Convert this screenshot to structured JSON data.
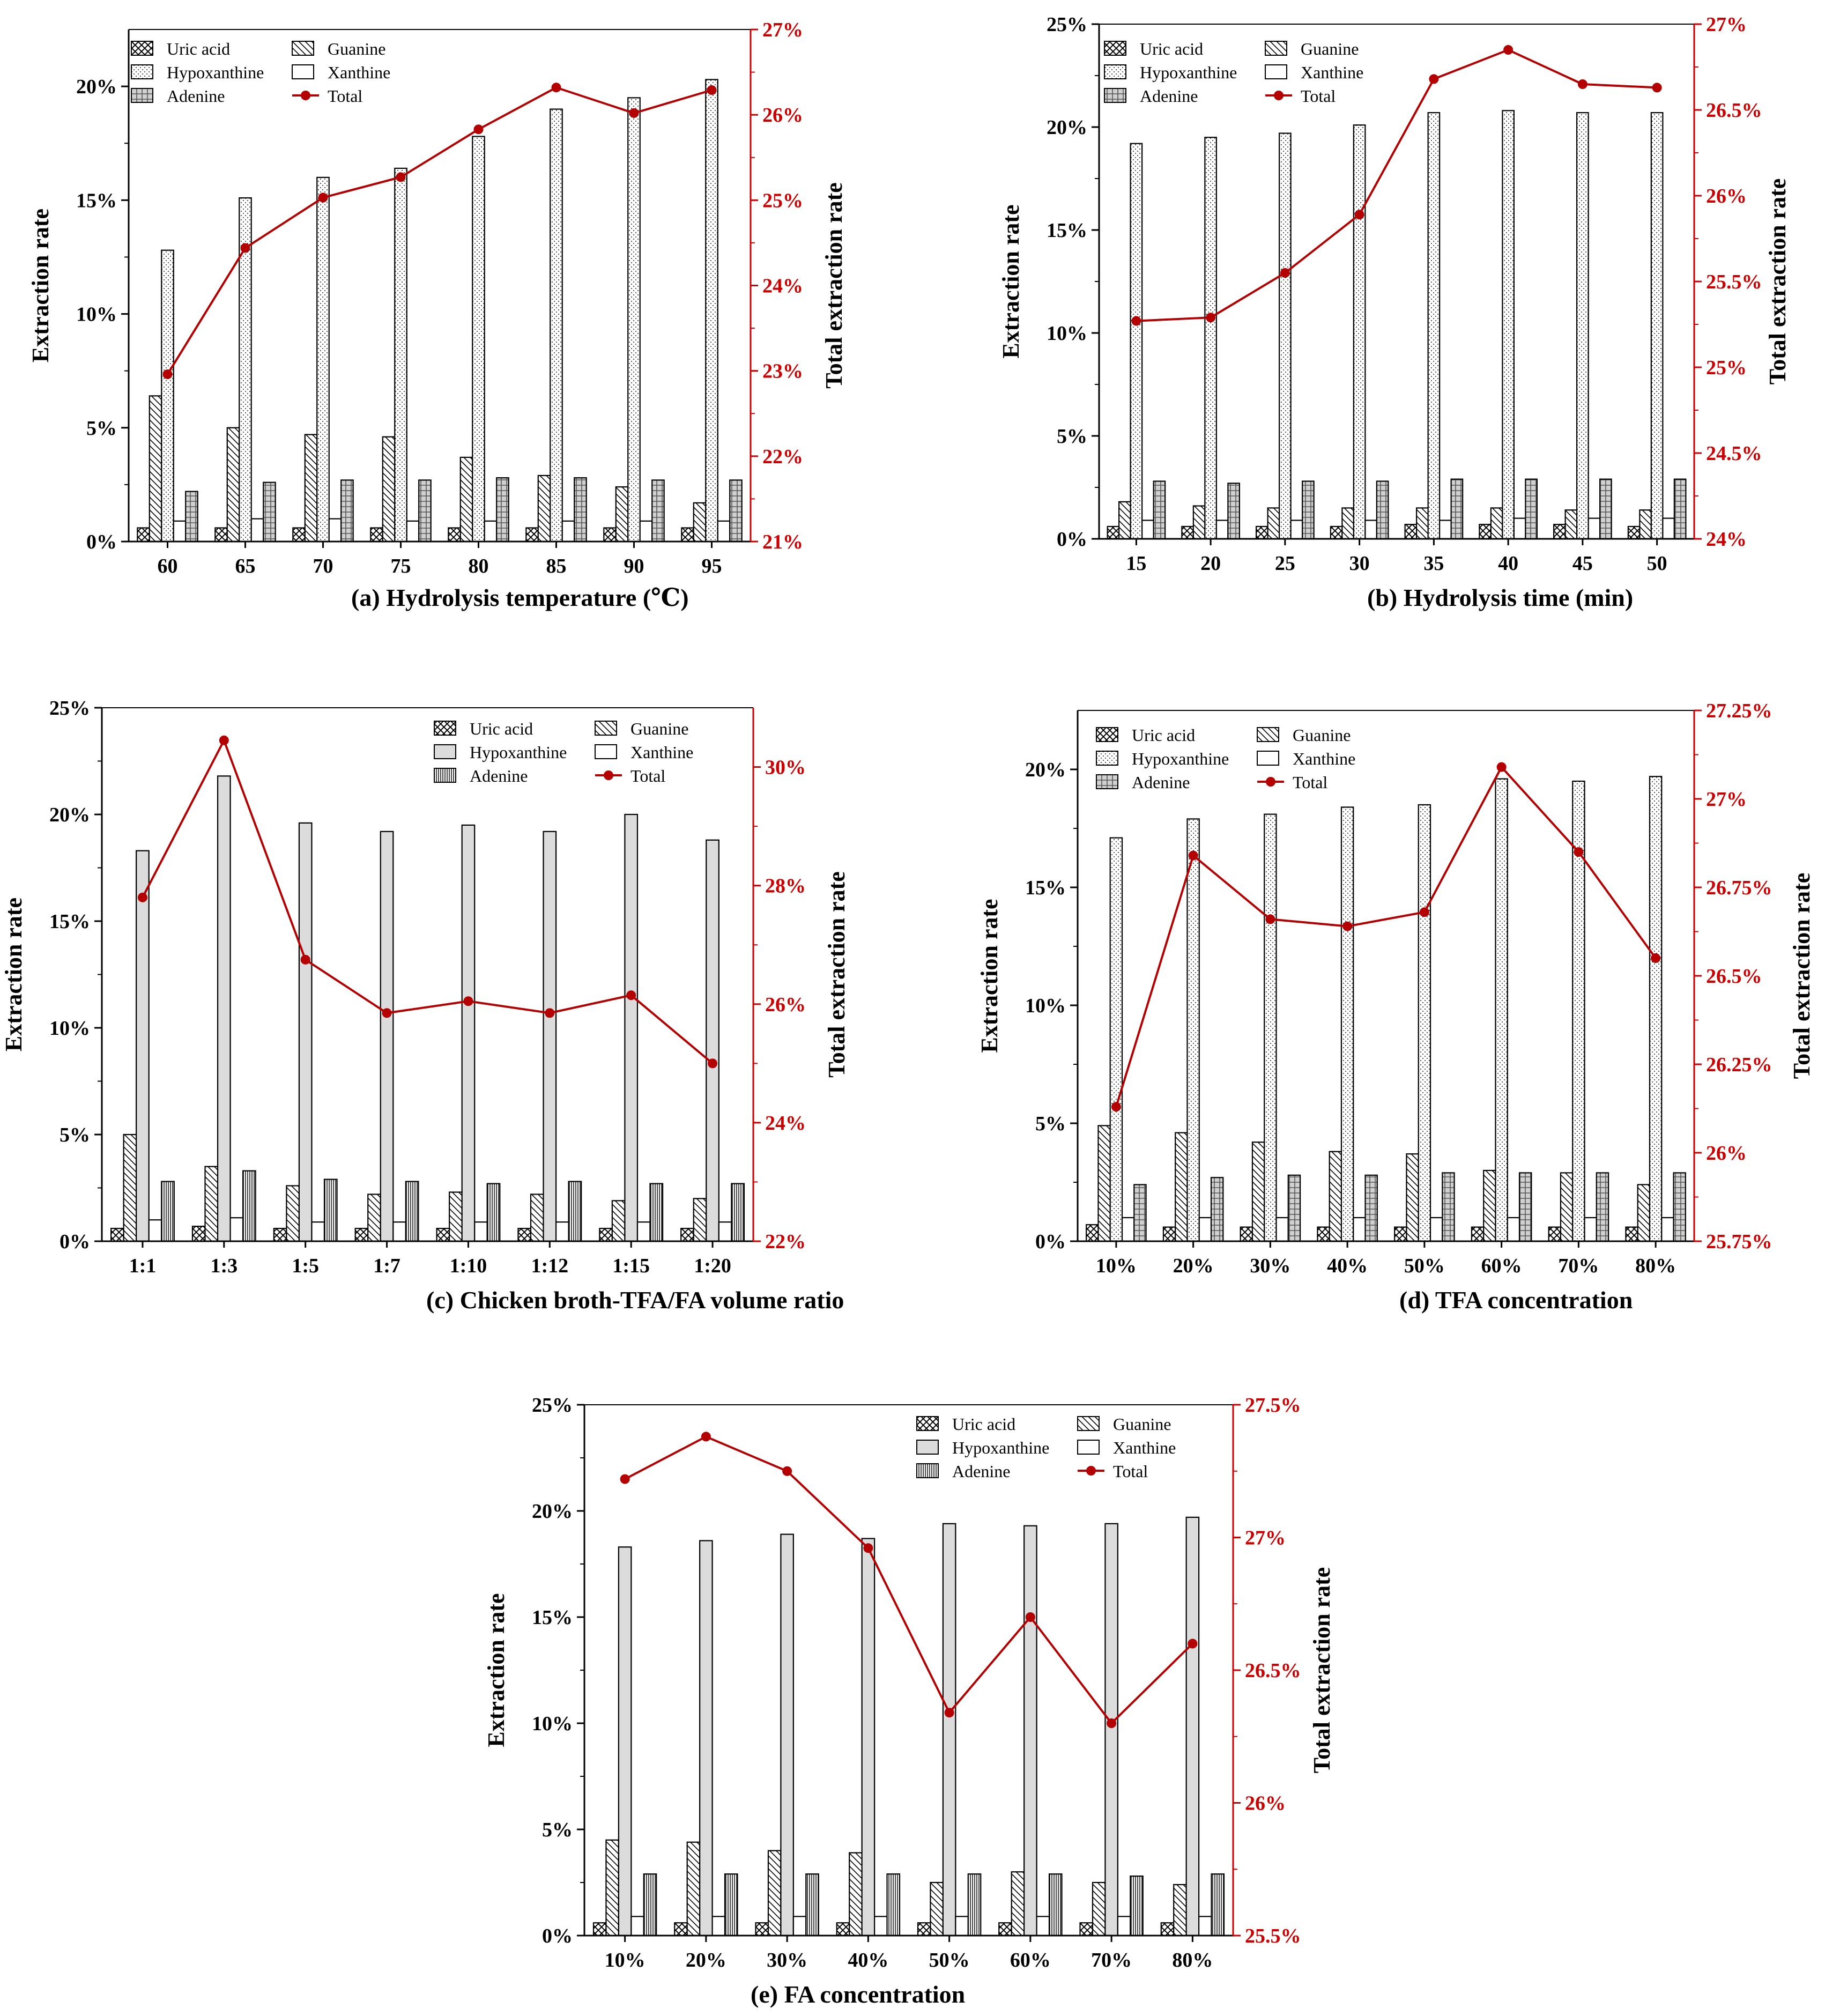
{
  "figure": {
    "series_colors": {
      "bar_stroke": "#000000",
      "hypoxanthine_fill": "#dcdcdc",
      "total_line": "#b40000",
      "right_axis": "#cc0000"
    },
    "series_names": [
      "Uric acid",
      "Guanine",
      "Hypoxanthine",
      "Xanthine",
      "Adenine",
      "Total"
    ]
  },
  "chart_data": [
    {
      "id": "a",
      "type": "bar+line",
      "caption_letter": "(a)",
      "title": "Hydrolysis temperature (℃)",
      "ylabel": "Extraction rate",
      "y2label": "Total extraction rate",
      "categories": [
        "60",
        "65",
        "70",
        "75",
        "80",
        "85",
        "90",
        "95"
      ],
      "ylim": [
        0,
        22.5
      ],
      "yticks": [
        0,
        5,
        10,
        15,
        20
      ],
      "ytick_labels": [
        "0%",
        "5%",
        "10%",
        "15%",
        "20%"
      ],
      "y2lim": [
        21,
        27
      ],
      "y2ticks": [
        21,
        22,
        23,
        24,
        25,
        26,
        27
      ],
      "y2tick_labels": [
        "21%",
        "22%",
        "23%",
        "24%",
        "25%",
        "26%",
        "27%"
      ],
      "legend": [
        "Uric acid",
        "Guanine",
        "Hypoxanthine",
        "Xanthine",
        "Adenine",
        "Total"
      ],
      "legend_position": "top-left",
      "series": [
        {
          "name": "Uric acid",
          "values": [
            0.6,
            0.6,
            0.6,
            0.6,
            0.6,
            0.6,
            0.6,
            0.6
          ]
        },
        {
          "name": "Guanine",
          "values": [
            6.4,
            5.0,
            4.7,
            4.6,
            3.7,
            2.9,
            2.4,
            1.7
          ]
        },
        {
          "name": "Hypoxanthine",
          "values": [
            12.8,
            15.1,
            16.0,
            16.4,
            17.8,
            19.0,
            19.5,
            20.3
          ]
        },
        {
          "name": "Xanthine",
          "values": [
            0.9,
            1.0,
            1.0,
            0.9,
            0.9,
            0.9,
            0.9,
            0.9
          ]
        },
        {
          "name": "Adenine",
          "values": [
            2.2,
            2.6,
            2.7,
            2.7,
            2.8,
            2.8,
            2.7,
            2.7
          ]
        }
      ],
      "total": [
        22.96,
        24.44,
        25.03,
        25.27,
        25.83,
        26.32,
        26.02,
        26.29
      ]
    },
    {
      "id": "b",
      "type": "bar+line",
      "caption_letter": "(b)",
      "title": "Hydrolysis time (min)",
      "ylabel": "Extraction rate",
      "y2label": "Total extraction rate",
      "categories": [
        "15",
        "20",
        "25",
        "30",
        "35",
        "40",
        "45",
        "50"
      ],
      "ylim": [
        0,
        25
      ],
      "yticks": [
        0,
        5,
        10,
        15,
        20,
        25
      ],
      "ytick_labels": [
        "0%",
        "5%",
        "10%",
        "15%",
        "20%",
        "25%"
      ],
      "y2lim": [
        24,
        27
      ],
      "y2ticks": [
        24,
        24.5,
        25,
        25.5,
        26,
        26.5,
        27
      ],
      "y2tick_labels": [
        "24%",
        "24.5%",
        "25%",
        "25.5%",
        "26%",
        "26.5%",
        "27%"
      ],
      "legend": [
        "Uric acid",
        "Guanine",
        "Hypoxanthine",
        "Xanthine",
        "Adenine",
        "Total"
      ],
      "legend_position": "top-left",
      "series": [
        {
          "name": "Uric acid",
          "values": [
            0.6,
            0.6,
            0.6,
            0.6,
            0.7,
            0.7,
            0.7,
            0.6
          ]
        },
        {
          "name": "Guanine",
          "values": [
            1.8,
            1.6,
            1.5,
            1.5,
            1.5,
            1.5,
            1.4,
            1.4
          ]
        },
        {
          "name": "Hypoxanthine",
          "values": [
            19.2,
            19.5,
            19.7,
            20.1,
            20.7,
            20.8,
            20.7,
            20.7
          ]
        },
        {
          "name": "Xanthine",
          "values": [
            0.9,
            0.9,
            0.9,
            0.9,
            0.9,
            1.0,
            1.0,
            1.0
          ]
        },
        {
          "name": "Adenine",
          "values": [
            2.8,
            2.7,
            2.8,
            2.8,
            2.9,
            2.9,
            2.9,
            2.9
          ]
        }
      ],
      "total": [
        25.27,
        25.29,
        25.55,
        25.89,
        26.68,
        26.85,
        26.65,
        26.63
      ]
    },
    {
      "id": "c",
      "type": "bar+line",
      "caption_letter": "(c)",
      "title": "Chicken broth-TFA/FA volume ratio",
      "ylabel": "Extraction rate",
      "y2label": "Total extraction rate",
      "categories": [
        "1:1",
        "1:3",
        "1:5",
        "1:7",
        "1:10",
        "1:12",
        "1:15",
        "1:20"
      ],
      "ylim": [
        0,
        25
      ],
      "yticks": [
        0,
        5,
        10,
        15,
        20,
        25
      ],
      "ytick_labels": [
        "0%",
        "5%",
        "10%",
        "15%",
        "20%",
        "25%"
      ],
      "y2lim": [
        22,
        31
      ],
      "y2ticks": [
        22,
        24,
        26,
        28,
        30
      ],
      "y2tick_labels": [
        "22%",
        "24%",
        "26%",
        "28%",
        "30%"
      ],
      "legend": [
        "Uric acid",
        "Guanine",
        "Hypoxanthine",
        "Xanthine",
        "Adenine",
        "Total"
      ],
      "legend_position": "top-right",
      "series": [
        {
          "name": "Uric acid",
          "values": [
            0.6,
            0.7,
            0.6,
            0.6,
            0.6,
            0.6,
            0.6,
            0.6
          ]
        },
        {
          "name": "Guanine",
          "values": [
            5.0,
            3.5,
            2.6,
            2.2,
            2.3,
            2.2,
            1.9,
            2.0
          ]
        },
        {
          "name": "Hypoxanthine",
          "values": [
            18.3,
            21.8,
            19.6,
            19.2,
            19.5,
            19.2,
            20.0,
            18.8
          ]
        },
        {
          "name": "Xanthine",
          "values": [
            1.0,
            1.1,
            0.9,
            0.9,
            0.9,
            0.9,
            0.9,
            0.9
          ]
        },
        {
          "name": "Adenine",
          "values": [
            2.8,
            3.3,
            2.9,
            2.8,
            2.7,
            2.8,
            2.7,
            2.7
          ]
        }
      ],
      "total": [
        27.8,
        30.45,
        26.75,
        25.85,
        26.05,
        25.85,
        26.15,
        25.0
      ]
    },
    {
      "id": "d",
      "type": "bar+line",
      "caption_letter": "(d)",
      "title": "TFA concentration",
      "ylabel": "Extraction rate",
      "y2label": "Total extraction rate",
      "categories": [
        "10%",
        "20%",
        "30%",
        "40%",
        "50%",
        "60%",
        "70%",
        "80%"
      ],
      "ylim": [
        0,
        22.5
      ],
      "yticks": [
        0,
        5,
        10,
        15,
        20
      ],
      "ytick_labels": [
        "0%",
        "5%",
        "10%",
        "15%",
        "20%"
      ],
      "y2lim": [
        25.75,
        27.25
      ],
      "y2ticks": [
        25.75,
        26,
        26.25,
        26.5,
        26.75,
        27,
        27.25
      ],
      "y2tick_labels": [
        "25.75%",
        "26%",
        "26.25%",
        "26.5%",
        "26.75%",
        "27%",
        "27.25%"
      ],
      "legend": [
        "Uric acid",
        "Guanine",
        "Hypoxanthine",
        "Xanthine",
        "Adenine",
        "Total"
      ],
      "legend_position": "top-left",
      "series": [
        {
          "name": "Uric acid",
          "values": [
            0.7,
            0.6,
            0.6,
            0.6,
            0.6,
            0.6,
            0.6,
            0.6
          ]
        },
        {
          "name": "Guanine",
          "values": [
            4.9,
            4.6,
            4.2,
            3.8,
            3.7,
            3.0,
            2.9,
            2.4
          ]
        },
        {
          "name": "Hypoxanthine",
          "values": [
            17.1,
            17.9,
            18.1,
            18.4,
            18.5,
            19.6,
            19.5,
            19.7
          ]
        },
        {
          "name": "Xanthine",
          "values": [
            1.0,
            1.0,
            1.0,
            1.0,
            1.0,
            1.0,
            1.0,
            1.0
          ]
        },
        {
          "name": "Adenine",
          "values": [
            2.4,
            2.7,
            2.8,
            2.8,
            2.9,
            2.9,
            2.9,
            2.9
          ]
        }
      ],
      "total": [
        26.13,
        26.84,
        26.66,
        26.64,
        26.68,
        27.09,
        26.85,
        26.55
      ]
    },
    {
      "id": "e",
      "type": "bar+line",
      "caption_letter": "(e)",
      "title": "FA concentration",
      "ylabel": "Extraction rate",
      "y2label": "Total extraction rate",
      "categories": [
        "10%",
        "20%",
        "30%",
        "40%",
        "50%",
        "60%",
        "70%",
        "80%"
      ],
      "ylim": [
        0,
        25
      ],
      "yticks": [
        0,
        5,
        10,
        15,
        20,
        25
      ],
      "ytick_labels": [
        "0%",
        "5%",
        "10%",
        "15%",
        "20%",
        "25%"
      ],
      "y2lim": [
        25.5,
        27.5
      ],
      "y2ticks": [
        25.5,
        26,
        26.5,
        27,
        27.5
      ],
      "y2tick_labels": [
        "25.5%",
        "26%",
        "26.5%",
        "27%",
        "27.5%"
      ],
      "legend": [
        "Uric acid",
        "Guanine",
        "Hypoxanthine",
        "Xanthine",
        "Adenine",
        "Total"
      ],
      "legend_position": "top-right",
      "series": [
        {
          "name": "Uric acid",
          "values": [
            0.6,
            0.6,
            0.6,
            0.6,
            0.6,
            0.6,
            0.6,
            0.6
          ]
        },
        {
          "name": "Guanine",
          "values": [
            4.5,
            4.4,
            4.0,
            3.9,
            2.5,
            3.0,
            2.5,
            2.4
          ]
        },
        {
          "name": "Hypoxanthine",
          "values": [
            18.3,
            18.6,
            18.9,
            18.7,
            19.4,
            19.3,
            19.4,
            19.7
          ]
        },
        {
          "name": "Xanthine",
          "values": [
            0.9,
            0.9,
            0.9,
            0.9,
            0.9,
            0.9,
            0.9,
            0.9
          ]
        },
        {
          "name": "Adenine",
          "values": [
            2.9,
            2.9,
            2.9,
            2.9,
            2.9,
            2.9,
            2.8,
            2.9
          ]
        }
      ],
      "total": [
        27.22,
        27.38,
        27.25,
        26.96,
        26.34,
        26.7,
        26.3,
        26.6
      ]
    }
  ]
}
